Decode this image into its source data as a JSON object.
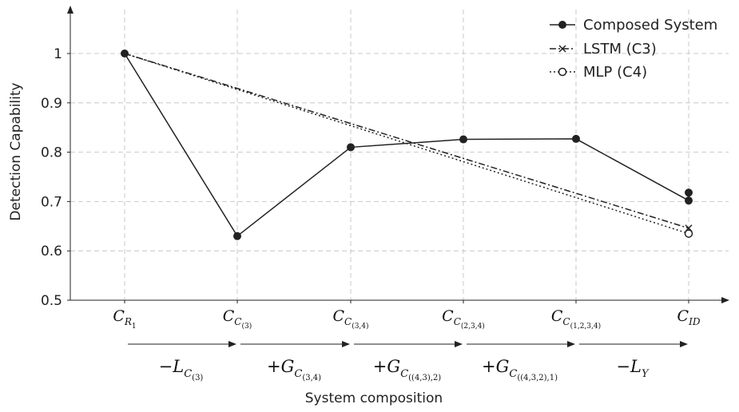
{
  "chart_data": {
    "type": "line",
    "title": "",
    "xlabel": "System composition",
    "ylabel": "Detection Capability",
    "ylim": [
      0.5,
      1.0
    ],
    "yticks": [
      "0.5",
      "0.6",
      "0.7",
      "0.8",
      "0.9",
      "1"
    ],
    "grid": true,
    "legend_position": "top-right",
    "categories": [
      {
        "main": "C",
        "sub": "R",
        "sub2": "1"
      },
      {
        "main": "C",
        "sub": "C",
        "sub2": "(3)"
      },
      {
        "main": "C",
        "sub": "C",
        "sub2": "(3,4)"
      },
      {
        "main": "C",
        "sub": "C",
        "sub2": "(2,3,4)"
      },
      {
        "main": "C",
        "sub": "C",
        "sub2": "(1,2,3,4)"
      },
      {
        "main": "C",
        "sub": "ID",
        "sub2": ""
      }
    ],
    "steps": [
      {
        "sign": "−",
        "main": "L",
        "sub": "C",
        "sub2": "(3)"
      },
      {
        "sign": "+",
        "main": "G",
        "sub": "C",
        "sub2": "(3,4)"
      },
      {
        "sign": "+",
        "main": "G",
        "sub": "C",
        "sub2": "((4,3),2)"
      },
      {
        "sign": "+",
        "main": "G",
        "sub": "C",
        "sub2": "((4,3,2),1)"
      },
      {
        "sign": "−",
        "main": "L",
        "sub": "Y",
        "sub2": ""
      }
    ],
    "series": [
      {
        "name": "Composed System",
        "style": "solid",
        "marker": "filled-circle",
        "color": "#222222",
        "points": [
          {
            "x": 0,
            "y": 1.0
          },
          {
            "x": 1,
            "y": 0.63
          },
          {
            "x": 2,
            "y": 0.81
          },
          {
            "x": 3,
            "y": 0.826
          },
          {
            "x": 4,
            "y": 0.827
          },
          {
            "x": 5,
            "y": 0.702
          }
        ],
        "extra_points": [
          {
            "x": 5,
            "y": 0.718
          }
        ]
      },
      {
        "name": "LSTM (C3)",
        "style": "dashdot",
        "marker": "cross",
        "color": "#222222",
        "points": [
          {
            "x": 0,
            "y": 1.0
          },
          {
            "x": 5,
            "y": 0.646
          }
        ]
      },
      {
        "name": "MLP (C4)",
        "style": "dotted",
        "marker": "open-circle",
        "color": "#222222",
        "points": [
          {
            "x": 0,
            "y": 1.0
          },
          {
            "x": 5,
            "y": 0.635
          }
        ]
      }
    ]
  }
}
